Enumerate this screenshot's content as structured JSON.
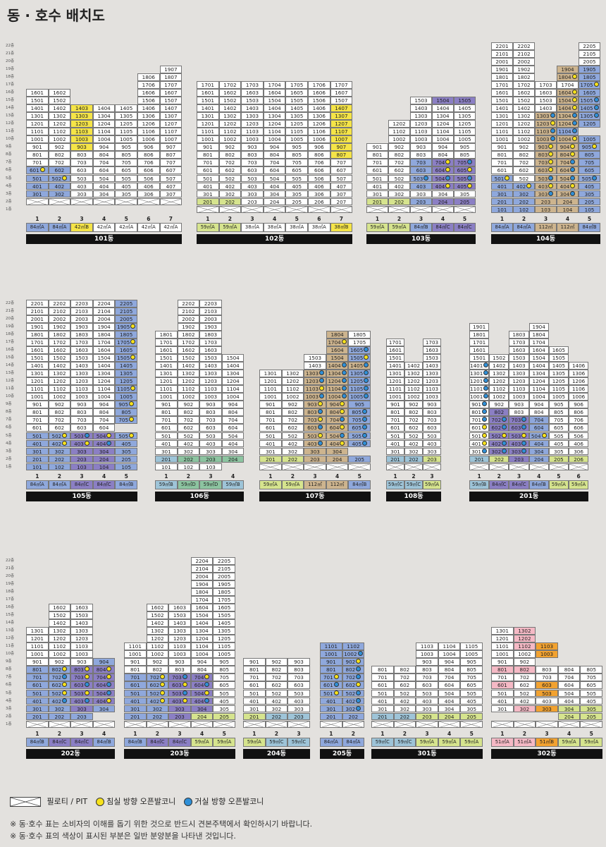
{
  "title": "동 · 호수 배치도",
  "floor_labels": [
    "22층",
    "21층",
    "20층",
    "19층",
    "18층",
    "17층",
    "16층",
    "15층",
    "14층",
    "13층",
    "12층",
    "11층",
    "10층",
    "9층",
    "8층",
    "7층",
    "6층",
    "5층",
    "4층",
    "3층",
    "2층",
    "1층"
  ],
  "legend": {
    "pilotis": "필로티 / PIT",
    "bedroom_balcony": "침실 방향 오픈발코니",
    "living_balcony": "거실 방향 오픈발코니"
  },
  "notes": [
    "※ 동·호수 표는 소비자의 이해를 돕기 위한 것으로 반드시 견본주택에서 확인하시기 바랍니다.",
    "※ 동·호수 표의 색상이 표시된 부분은 일반 분양분을 나타낸 것입니다."
  ],
  "buildings": [
    {
      "name": "101동",
      "lines": [
        "1",
        "2",
        "3",
        "4",
        "5",
        "6",
        "7"
      ],
      "types": [
        "84㎡A",
        "84㎡A",
        "42㎡B",
        "42㎡A",
        "42㎡A",
        "42㎡A",
        "42㎡A"
      ],
      "type_colors": [
        "b",
        "b",
        "y",
        "w",
        "w",
        "w",
        "w"
      ]
    },
    {
      "name": "102동",
      "lines": [
        "1",
        "2",
        "3",
        "4",
        "5",
        "6",
        "7"
      ],
      "types": [
        "59㎡A",
        "59㎡A",
        "38㎡A",
        "38㎡A",
        "38㎡A",
        "38㎡A",
        "38㎡B"
      ],
      "type_colors": [
        "g",
        "g",
        "w",
        "w",
        "w",
        "w",
        "y"
      ]
    },
    {
      "name": "103동",
      "lines": [
        "1",
        "2",
        "3",
        "4",
        "5"
      ],
      "types": [
        "59㎡A",
        "59㎡A",
        "84㎡B",
        "84㎡C",
        "84㎡C"
      ],
      "type_colors": [
        "g",
        "g",
        "b",
        "p",
        "p"
      ]
    },
    {
      "name": "104동",
      "lines": [
        "1",
        "2",
        "3",
        "4",
        "5"
      ],
      "types": [
        "84㎡A",
        "84㎡A",
        "112㎡",
        "112㎡",
        "84㎡B"
      ],
      "type_colors": [
        "b",
        "b",
        "k",
        "k",
        "b"
      ]
    },
    {
      "name": "105동",
      "lines": [
        "1",
        "2",
        "3",
        "4",
        "5"
      ],
      "types": [
        "84㎡A",
        "84㎡A",
        "84㎡C",
        "84㎡C",
        "84㎡B"
      ],
      "type_colors": [
        "b",
        "b",
        "p",
        "p",
        "b"
      ]
    },
    {
      "name": "106동",
      "lines": [
        "1",
        "2",
        "3",
        "4"
      ],
      "types": [
        "59㎡B",
        "59㎡D",
        "59㎡D",
        "59㎡B"
      ],
      "type_colors": [
        "c",
        "t",
        "t",
        "c"
      ]
    },
    {
      "name": "107동",
      "lines": [
        "1",
        "2",
        "3",
        "4",
        "5"
      ],
      "types": [
        "59㎡A",
        "59㎡A",
        "112㎡",
        "112㎡",
        "84㎡B"
      ],
      "type_colors": [
        "g",
        "g",
        "k",
        "k",
        "b"
      ]
    },
    {
      "name": "108동",
      "lines": [
        "1",
        "2",
        "3"
      ],
      "types": [
        "59㎡C",
        "59㎡C",
        "59㎡A"
      ],
      "type_colors": [
        "c",
        "c",
        "g"
      ]
    },
    {
      "name": "201동",
      "lines": [
        "1",
        "2",
        "3",
        "4",
        "5",
        "6"
      ],
      "types": [
        "59㎡B",
        "84㎡C",
        "84㎡C",
        "84㎡B",
        "59㎡A",
        "59㎡A"
      ],
      "type_colors": [
        "c",
        "p",
        "p",
        "b",
        "g",
        "g"
      ]
    },
    {
      "name": "202동",
      "lines": [
        "1",
        "2",
        "3",
        "4"
      ],
      "types": [
        "84㎡B",
        "84㎡C",
        "84㎡C",
        "84㎡B"
      ],
      "type_colors": [
        "b",
        "p",
        "p",
        "b"
      ]
    },
    {
      "name": "203동",
      "lines": [
        "1",
        "2",
        "3",
        "4",
        "5"
      ],
      "types": [
        "84㎡B",
        "84㎡C",
        "84㎡C",
        "59㎡A",
        "59㎡A"
      ],
      "type_colors": [
        "b",
        "p",
        "p",
        "g",
        "g"
      ]
    },
    {
      "name": "204동",
      "lines": [
        "1",
        "2",
        "3"
      ],
      "types": [
        "59㎡A",
        "59㎡C",
        "59㎡C"
      ],
      "type_colors": [
        "g",
        "c",
        "c"
      ]
    },
    {
      "name": "205동",
      "lines": [
        "1",
        "2"
      ],
      "types": [
        "84㎡A",
        "84㎡A"
      ],
      "type_colors": [
        "b",
        "b"
      ]
    },
    {
      "name": "301동",
      "lines": [
        "1",
        "2",
        "3",
        "4",
        "5"
      ],
      "types": [
        "59㎡C",
        "59㎡C",
        "59㎡A",
        "59㎡A",
        "59㎡A"
      ],
      "type_colors": [
        "c",
        "c",
        "g",
        "g",
        "g"
      ]
    },
    {
      "name": "302동",
      "lines": [
        "1",
        "2",
        "3",
        "4",
        "5"
      ],
      "types": [
        "51㎡A",
        "51㎡A",
        "51㎡B",
        "59㎡A",
        "59㎡A"
      ],
      "type_colors": [
        "r",
        "r",
        "o",
        "g",
        "g"
      ]
    }
  ]
}
